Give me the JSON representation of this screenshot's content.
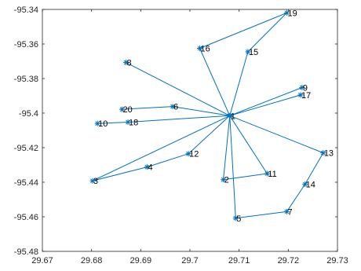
{
  "chart_data": {
    "type": "scatter",
    "title": "",
    "xlabel": "",
    "ylabel": "",
    "xlim": [
      29.67,
      29.73
    ],
    "ylim": [
      -95.48,
      -95.34
    ],
    "xticks": [
      29.67,
      29.68,
      29.69,
      29.7,
      29.71,
      29.72,
      29.73
    ],
    "yticks": [
      -95.48,
      -95.46,
      -95.44,
      -95.42,
      -95.4,
      -95.38,
      -95.36,
      -95.34
    ],
    "xtick_labels": [
      "29.67",
      "29.68",
      "29.69",
      "29.7",
      "29.71",
      "29.72",
      "29.73"
    ],
    "ytick_labels": [
      "-95.48",
      "-95.46",
      "-95.44",
      "-95.42",
      "-95.4",
      "-95.38",
      "-95.36",
      "-95.34"
    ],
    "grid": false,
    "marker": "asterisk",
    "line_color": "#0072BD",
    "points": [
      {
        "label": "1",
        "x": 29.7081,
        "y": -95.4015
      },
      {
        "label": "2",
        "x": 29.7068,
        "y": -95.4385
      },
      {
        "label": "3",
        "x": 29.6802,
        "y": -95.4392
      },
      {
        "label": "4",
        "x": 29.6913,
        "y": -95.4312
      },
      {
        "label": "5",
        "x": 29.7093,
        "y": -95.4608
      },
      {
        "label": "6",
        "x": 29.6965,
        "y": -95.3962
      },
      {
        "label": "7",
        "x": 29.7197,
        "y": -95.457
      },
      {
        "label": "8",
        "x": 29.687,
        "y": -95.3707
      },
      {
        "label": "9",
        "x": 29.7228,
        "y": -95.3852
      },
      {
        "label": "10",
        "x": 29.6812,
        "y": -95.406
      },
      {
        "label": "11",
        "x": 29.7157,
        "y": -95.435
      },
      {
        "label": "12",
        "x": 29.6997,
        "y": -95.4235
      },
      {
        "label": "13",
        "x": 29.7271,
        "y": -95.423
      },
      {
        "label": "14",
        "x": 29.7234,
        "y": -95.4412
      },
      {
        "label": "15",
        "x": 29.7118,
        "y": -95.3645
      },
      {
        "label": "16",
        "x": 29.702,
        "y": -95.3625
      },
      {
        "label": "17",
        "x": 29.7225,
        "y": -95.3895
      },
      {
        "label": "18",
        "x": 29.6874,
        "y": -95.4052
      },
      {
        "label": "19",
        "x": 29.7197,
        "y": -95.342
      },
      {
        "label": "20",
        "x": 29.6862,
        "y": -95.3978
      }
    ],
    "edges": [
      [
        "3",
        "1"
      ],
      [
        "1",
        "8"
      ],
      [
        "1",
        "16"
      ],
      [
        "16",
        "19"
      ],
      [
        "19",
        "15"
      ],
      [
        "15",
        "1"
      ],
      [
        "1",
        "9"
      ],
      [
        "1",
        "17"
      ],
      [
        "1",
        "13"
      ],
      [
        "13",
        "14"
      ],
      [
        "14",
        "7"
      ],
      [
        "7",
        "5"
      ],
      [
        "5",
        "1"
      ],
      [
        "1",
        "11"
      ],
      [
        "11",
        "2"
      ],
      [
        "2",
        "1"
      ],
      [
        "1",
        "12"
      ],
      [
        "12",
        "4"
      ],
      [
        "4",
        "3"
      ],
      [
        "1",
        "6"
      ],
      [
        "6",
        "20"
      ],
      [
        "1",
        "18"
      ],
      [
        "18",
        "10"
      ]
    ]
  }
}
